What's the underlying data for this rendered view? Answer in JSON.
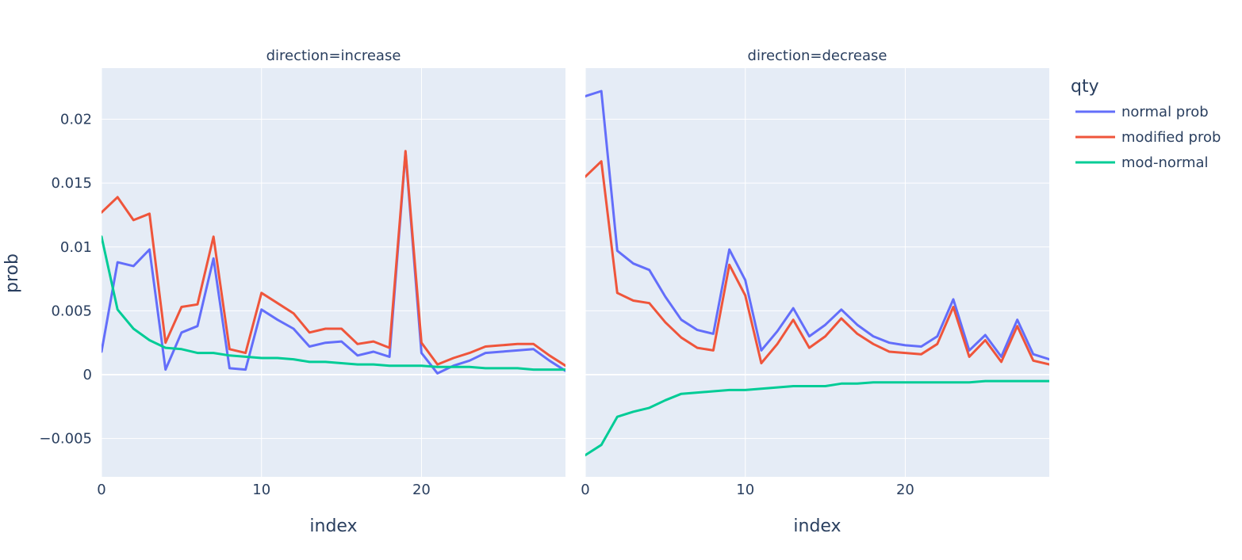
{
  "chart_data": {
    "type": "line",
    "panels": [
      {
        "title": "direction=increase",
        "x_ticks": [
          0,
          10,
          20
        ],
        "x": [
          0,
          1,
          2,
          3,
          4,
          5,
          6,
          7,
          8,
          9,
          10,
          11,
          12,
          13,
          14,
          15,
          16,
          17,
          18,
          19,
          20,
          21,
          22,
          23,
          24,
          25,
          26,
          27,
          28,
          29
        ],
        "series": [
          {
            "name": "normal prob",
            "values": [
              0.0018,
              0.0088,
              0.0085,
              0.0098,
              0.0004,
              0.0033,
              0.0038,
              0.0091,
              0.0005,
              0.0004,
              0.0051,
              0.0043,
              0.0036,
              0.0022,
              0.0025,
              0.0026,
              0.0015,
              0.0018,
              0.0014,
              0.0174,
              0.0017,
              0.0001,
              0.0007,
              0.0011,
              0.0017,
              0.0018,
              0.0019,
              0.002,
              0.0011,
              0.0003
            ]
          },
          {
            "name": "modified prob",
            "values": [
              0.0127,
              0.0139,
              0.0121,
              0.0126,
              0.0025,
              0.0053,
              0.0055,
              0.0108,
              0.002,
              0.0017,
              0.0064,
              0.0056,
              0.0048,
              0.0033,
              0.0036,
              0.0036,
              0.0024,
              0.0026,
              0.0021,
              0.0175,
              0.0025,
              0.0008,
              0.0013,
              0.0017,
              0.0022,
              0.0023,
              0.0024,
              0.0024,
              0.0015,
              0.0007
            ]
          },
          {
            "name": "mod-normal",
            "values": [
              0.0108,
              0.0051,
              0.0036,
              0.0027,
              0.0021,
              0.002,
              0.0017,
              0.0017,
              0.0015,
              0.0014,
              0.0013,
              0.0013,
              0.0012,
              0.001,
              0.001,
              0.0009,
              0.0008,
              0.0008,
              0.0007,
              0.0007,
              0.0007,
              0.0006,
              0.0006,
              0.0006,
              0.0005,
              0.0005,
              0.0005,
              0.0004,
              0.0004,
              0.0004
            ]
          }
        ]
      },
      {
        "title": "direction=decrease",
        "x_ticks": [
          0,
          10,
          20
        ],
        "x": [
          0,
          1,
          2,
          3,
          4,
          5,
          6,
          7,
          8,
          9,
          10,
          11,
          12,
          13,
          14,
          15,
          16,
          17,
          18,
          19,
          20,
          21,
          22,
          23,
          24,
          25,
          26,
          27,
          28,
          29
        ],
        "series": [
          {
            "name": "normal prob",
            "values": [
              0.0218,
              0.0222,
              0.0097,
              0.0087,
              0.0082,
              0.0061,
              0.0043,
              0.0035,
              0.0032,
              0.0098,
              0.0074,
              0.0019,
              0.0034,
              0.0052,
              0.003,
              0.0039,
              0.0051,
              0.0039,
              0.003,
              0.0025,
              0.0023,
              0.0022,
              0.003,
              0.0059,
              0.0019,
              0.0031,
              0.0014,
              0.0043,
              0.0016,
              0.0012
            ]
          },
          {
            "name": "modified prob",
            "values": [
              0.0155,
              0.0167,
              0.0064,
              0.0058,
              0.0056,
              0.0041,
              0.0029,
              0.0021,
              0.0019,
              0.0086,
              0.0062,
              0.0009,
              0.0024,
              0.0043,
              0.0021,
              0.003,
              0.0044,
              0.0032,
              0.0024,
              0.0018,
              0.0017,
              0.0016,
              0.0024,
              0.0053,
              0.0014,
              0.0027,
              0.001,
              0.0038,
              0.0011,
              0.0008
            ]
          },
          {
            "name": "mod-normal",
            "values": [
              -0.0063,
              -0.0055,
              -0.0033,
              -0.0029,
              -0.0026,
              -0.002,
              -0.0015,
              -0.0014,
              -0.0013,
              -0.0012,
              -0.0012,
              -0.0011,
              -0.001,
              -0.0009,
              -0.0009,
              -0.0009,
              -0.0007,
              -0.0007,
              -0.0006,
              -0.0006,
              -0.0006,
              -0.0006,
              -0.0006,
              -0.0006,
              -0.0006,
              -0.0005,
              -0.0005,
              -0.0005,
              -0.0005,
              -0.0005
            ]
          }
        ]
      }
    ],
    "xlabel": "index",
    "ylabel": "prob",
    "xlim": [
      0,
      29
    ],
    "ylim": [
      -0.008,
      0.024
    ],
    "y_ticks": [
      -0.005,
      0,
      0.005,
      0.01,
      0.015,
      0.02
    ],
    "y_tick_labels": [
      "−0.005",
      "0",
      "0.005",
      "0.01",
      "0.015",
      "0.02"
    ],
    "grid": true,
    "legend": {
      "title": "qty",
      "placement": "right",
      "entries": [
        {
          "name": "normal prob",
          "color": "#636efa"
        },
        {
          "name": "modified prob",
          "color": "#EF553B"
        },
        {
          "name": "mod-normal",
          "color": "#00cc96"
        }
      ]
    },
    "colors": {
      "plot_bg": "#e5ecf6",
      "grid": "#ffffff",
      "text": "#2a3f5f"
    }
  }
}
